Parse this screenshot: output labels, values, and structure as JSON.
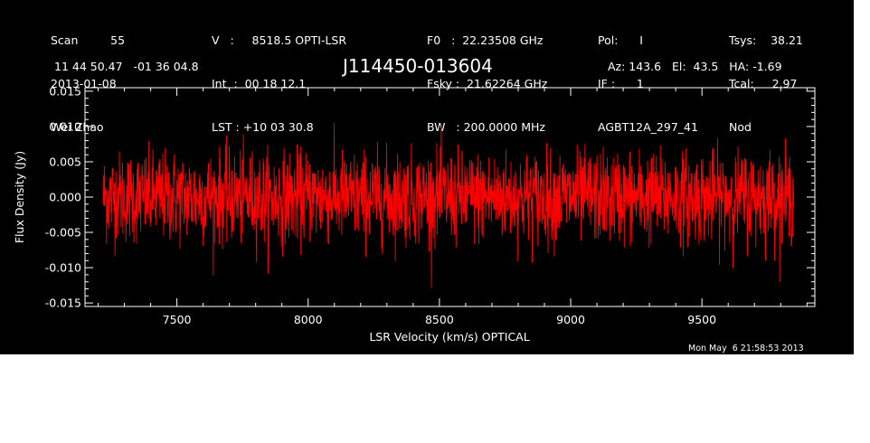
{
  "header": {
    "col1": [
      "Scan         55",
      "2013-01-08",
      "Wei Zhao"
    ],
    "col2": [
      "V   :     8518.5 OPTI-LSR",
      "Int  :  00 18 12.1",
      "LST : +10 03 30.8"
    ],
    "col3": [
      "F0   :  22.23508 GHz",
      "Fsky :  21.62264 GHz",
      "BW   : 200.0000 MHz"
    ],
    "col4": [
      "Pol:      I",
      "IF :      1",
      "AGBT12A_297_41"
    ],
    "col5": [
      "Tsys:    38.21",
      "Tcal:     2.97",
      "Nod"
    ],
    "coords": "11 44 50.47   -01 36 04.8",
    "source": "J114450-013604",
    "pointing": "Az: 143.6   El:  43.5   HA: -1.69",
    "timestamp": "Mon May  6 21:58:53 2013"
  },
  "colors": {
    "background": "#000000",
    "axes": "#ffffff",
    "trace": "#ff0000"
  },
  "chart_data": {
    "type": "line",
    "xlabel": "LSR Velocity (km/s) OPTICAL",
    "ylabel": "Flux Density (Jy)",
    "xlim": [
      7150,
      9930
    ],
    "ylim": [
      -0.0155,
      0.0155
    ],
    "xticks": [
      7500,
      8000,
      8500,
      9000,
      9500
    ],
    "xtick_labels": [
      "7500",
      "8000",
      "8500",
      "9000",
      "9500"
    ],
    "yticks": [
      -0.015,
      -0.01,
      -0.005,
      0.0,
      0.005,
      0.01,
      0.015
    ],
    "ytick_labels": [
      "-0.015",
      "-0.010",
      "-0.005",
      "0.000",
      "0.005",
      "0.010",
      "0.015"
    ],
    "series": [
      {
        "x_range": [
          7220,
          9850
        ],
        "n_points": 2200,
        "mean": 0.0,
        "rms": 0.0032,
        "description": "noise-dominated spectrum, no visible line"
      }
    ]
  }
}
